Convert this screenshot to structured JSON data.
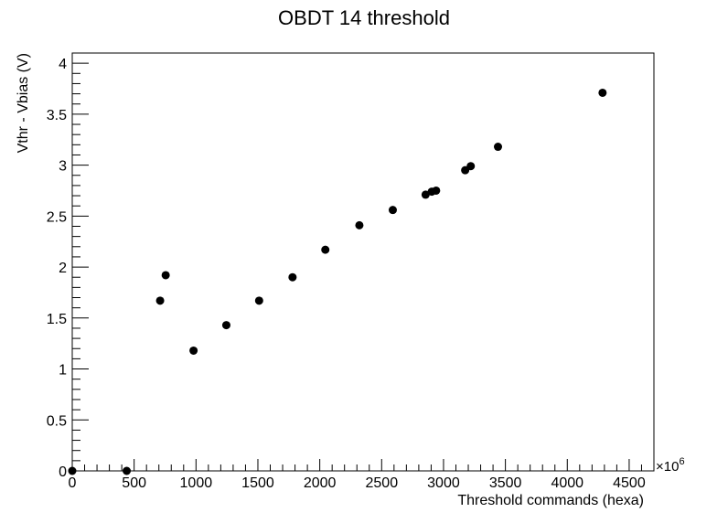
{
  "chart_data": {
    "type": "scatter",
    "title": "OBDT 14 threshold",
    "xlabel": "Threshold commands (hexa)",
    "ylabel": "Vthr - Vbias (V)",
    "x_exponent_label": "×10",
    "x_exponent_power": "6",
    "xlim": [
      0,
      4700
    ],
    "ylim": [
      0,
      4.1
    ],
    "x_ticks": [
      "0",
      "500",
      "1000",
      "1500",
      "2000",
      "2500",
      "3000",
      "3500",
      "4000",
      "4500"
    ],
    "y_ticks": [
      "0",
      "0.5",
      "1",
      "1.5",
      "2",
      "2.5",
      "3",
      "3.5",
      "4"
    ],
    "grid": false,
    "marker_color": "#000000",
    "points": [
      {
        "x": 0,
        "y": 0
      },
      {
        "x": 440,
        "y": 0
      },
      {
        "x": 710,
        "y": 1.67
      },
      {
        "x": 755,
        "y": 1.92
      },
      {
        "x": 980,
        "y": 1.18
      },
      {
        "x": 1245,
        "y": 1.43
      },
      {
        "x": 1510,
        "y": 1.67
      },
      {
        "x": 1780,
        "y": 1.9
      },
      {
        "x": 2045,
        "y": 2.17
      },
      {
        "x": 2320,
        "y": 2.41
      },
      {
        "x": 2590,
        "y": 2.56
      },
      {
        "x": 2855,
        "y": 2.71
      },
      {
        "x": 2905,
        "y": 2.74
      },
      {
        "x": 2940,
        "y": 2.75
      },
      {
        "x": 3175,
        "y": 2.95
      },
      {
        "x": 3220,
        "y": 2.99
      },
      {
        "x": 3440,
        "y": 3.18
      },
      {
        "x": 4285,
        "y": 3.71
      }
    ]
  }
}
